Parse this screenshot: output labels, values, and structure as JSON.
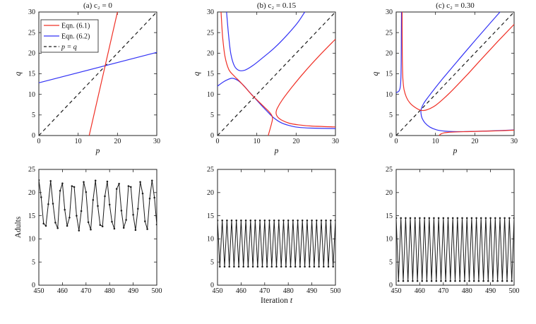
{
  "colors": {
    "red": "#f03026",
    "blue": "#3333f5",
    "black": "#1a1a1a",
    "axis": "#222222"
  },
  "chart_data": [
    {
      "id": "phase-plane-a",
      "type": "line",
      "title": "(a) c₂ = 0",
      "xlabel": "p",
      "ylabel": "q",
      "xlim": [
        0,
        30
      ],
      "ylim": [
        0,
        30
      ],
      "xticks": [
        0,
        10,
        20,
        30
      ],
      "yticks": [
        0,
        5,
        10,
        15,
        20,
        25,
        30
      ],
      "grid": false,
      "legend": {
        "position": "top-left",
        "entries": [
          {
            "label": "Eqn. (6.1)",
            "color": "red",
            "dash": false,
            "italic": false
          },
          {
            "label": "Eqn. (6.2)",
            "color": "blue",
            "dash": false,
            "italic": false
          },
          {
            "label": "p = q",
            "color": "black",
            "dash": true,
            "italic": true
          }
        ]
      },
      "series": [
        {
          "name": "p = q",
          "color": "black",
          "dash": true,
          "smooth": false,
          "points": [
            [
              0,
              0
            ],
            [
              30,
              30
            ]
          ]
        },
        {
          "name": "Eqn. (6.2)",
          "color": "blue",
          "dash": false,
          "smooth": false,
          "points": [
            [
              0,
              12.8
            ],
            [
              30,
              20.2
            ]
          ]
        },
        {
          "name": "Eqn. (6.1)",
          "color": "red",
          "dash": false,
          "smooth": false,
          "points": [
            [
              12.8,
              0
            ],
            [
              20,
              30
            ]
          ]
        }
      ]
    },
    {
      "id": "phase-plane-b",
      "type": "line",
      "title": "(b) c₂ = 0.15",
      "xlabel": "p",
      "ylabel": "q",
      "xlim": [
        0,
        30
      ],
      "ylim": [
        0,
        30
      ],
      "xticks": [
        0,
        10,
        20,
        30
      ],
      "yticks": [
        0,
        5,
        10,
        15,
        20,
        25,
        30
      ],
      "grid": false,
      "series": [
        {
          "name": "p = q",
          "color": "black",
          "dash": true,
          "smooth": false,
          "points": [
            [
              0,
              0
            ],
            [
              30,
              30
            ]
          ]
        },
        {
          "name": "Eqn. (6.2) upper branch",
          "color": "blue",
          "smooth": true,
          "points": [
            [
              2.3,
              30
            ],
            [
              2.8,
              24.5
            ],
            [
              3.4,
              19.8
            ],
            [
              4.3,
              16.9
            ],
            [
              5.5,
              15.8
            ],
            [
              7.0,
              15.9
            ],
            [
              9.0,
              17.0
            ],
            [
              11.5,
              18.9
            ],
            [
              14.5,
              21.3
            ],
            [
              17.5,
              24.2
            ],
            [
              20.3,
              27.3
            ],
            [
              22.2,
              30
            ]
          ]
        },
        {
          "name": "Eqn. (6.2) lower branch",
          "color": "blue",
          "smooth": true,
          "points": [
            [
              0,
              12.0
            ],
            [
              1.8,
              13.2
            ],
            [
              3.6,
              13.9
            ],
            [
              5.0,
              13.5
            ],
            [
              6.4,
              12.4
            ],
            [
              8.0,
              10.7
            ],
            [
              9.6,
              9.0
            ],
            [
              11.2,
              7.3
            ],
            [
              12.8,
              5.7
            ],
            [
              14.3,
              4.3
            ],
            [
              16.0,
              3.2
            ],
            [
              18.0,
              2.5
            ],
            [
              20.5,
              2.0
            ],
            [
              24,
              1.8
            ],
            [
              30,
              1.7
            ]
          ]
        },
        {
          "name": "Eqn. (6.1) left branch",
          "color": "red",
          "smooth": true,
          "points": [
            [
              0.9,
              30
            ],
            [
              1.3,
              24
            ],
            [
              1.9,
              19.2
            ],
            [
              2.9,
              16.0
            ],
            [
              4.3,
              14.4
            ],
            [
              5.9,
              12.9
            ],
            [
              7.4,
              11.3
            ],
            [
              8.7,
              9.9
            ],
            [
              10.2,
              8.5
            ],
            [
              11.7,
              7.1
            ],
            [
              13.0,
              5.9
            ],
            [
              13.8,
              4.9
            ],
            [
              14.0,
              4.1
            ],
            [
              13.8,
              3.1
            ],
            [
              13.4,
              1.7
            ],
            [
              12.9,
              0
            ]
          ]
        },
        {
          "name": "Eqn. (6.1) right branch",
          "color": "red",
          "smooth": true,
          "points": [
            [
              30,
              23.4
            ],
            [
              26,
              19.5
            ],
            [
              22,
              15.3
            ],
            [
              18.8,
              11.6
            ],
            [
              16.5,
              8.7
            ],
            [
              15.2,
              6.6
            ],
            [
              14.9,
              5.5
            ],
            [
              15.3,
              4.5
            ],
            [
              16.4,
              3.7
            ],
            [
              18.2,
              3.0
            ],
            [
              20.5,
              2.6
            ],
            [
              24,
              2.3
            ],
            [
              30,
              2.1
            ]
          ]
        }
      ]
    },
    {
      "id": "phase-plane-c",
      "type": "line",
      "title": "(c) c₂ = 0.30",
      "xlabel": "p",
      "ylabel": "q",
      "xlim": [
        0,
        30
      ],
      "ylim": [
        0,
        30
      ],
      "xticks": [
        0,
        10,
        20,
        30
      ],
      "yticks": [
        0,
        5,
        10,
        15,
        20,
        25,
        30
      ],
      "grid": false,
      "series": [
        {
          "name": "p = q",
          "color": "black",
          "dash": true,
          "smooth": false,
          "points": [
            [
              0,
              0
            ],
            [
              30,
              30
            ]
          ]
        },
        {
          "name": "Eqn. (6.2) left spike",
          "color": "blue",
          "smooth": true,
          "points": [
            [
              0,
              10.4
            ],
            [
              0.7,
              10.8
            ],
            [
              1.05,
              11.8
            ],
            [
              1.2,
              14
            ],
            [
              1.28,
              18
            ],
            [
              1.32,
              24
            ],
            [
              1.35,
              30
            ]
          ]
        },
        {
          "name": "Eqn. (6.2) main branch",
          "color": "blue",
          "smooth": true,
          "points": [
            [
              26.4,
              30
            ],
            [
              23,
              26.3
            ],
            [
              19,
              21.9
            ],
            [
              15,
              17.4
            ],
            [
              12,
              14
            ],
            [
              9.8,
              11.4
            ],
            [
              8.2,
              9.4
            ],
            [
              7.0,
              7.8
            ],
            [
              6.4,
              6.5
            ],
            [
              6.3,
              5.4
            ],
            [
              6.6,
              4.2
            ],
            [
              7.3,
              3.1
            ],
            [
              8.5,
              2.1
            ],
            [
              10.2,
              1.4
            ],
            [
              12.5,
              1.05
            ],
            [
              15.5,
              0.95
            ],
            [
              19,
              1.0
            ],
            [
              23,
              1.1
            ],
            [
              30,
              1.35
            ]
          ]
        },
        {
          "name": "Eqn. (6.1) main branch",
          "color": "red",
          "smooth": true,
          "points": [
            [
              1.5,
              30
            ],
            [
              1.53,
              24
            ],
            [
              1.58,
              18
            ],
            [
              1.7,
              13.8
            ],
            [
              2.0,
              11.2
            ],
            [
              2.6,
              9.3
            ],
            [
              3.5,
              7.9
            ],
            [
              4.7,
              6.9
            ],
            [
              6.0,
              6.2
            ],
            [
              7.2,
              6.1
            ],
            [
              8.5,
              6.5
            ],
            [
              10,
              7.3
            ],
            [
              12,
              8.9
            ],
            [
              14.5,
              11.2
            ],
            [
              18,
              14.7
            ],
            [
              22,
              18.9
            ],
            [
              26,
              23
            ],
            [
              30,
              27
            ]
          ]
        },
        {
          "name": "Eqn. (6.1) bottom branch",
          "color": "red",
          "smooth": true,
          "points": [
            [
              10.9,
              0
            ],
            [
              11.4,
              0.4
            ],
            [
              12.2,
              0.65
            ],
            [
              13.5,
              0.8
            ],
            [
              15.5,
              0.9
            ],
            [
              18,
              0.95
            ],
            [
              22,
              1.05
            ],
            [
              26,
              1.15
            ],
            [
              30,
              1.3
            ]
          ]
        }
      ]
    },
    {
      "id": "adults-timeseries-a",
      "type": "line",
      "title": "",
      "xlabel": "",
      "ylabel": "Adults",
      "xlim": [
        450,
        500
      ],
      "ylim": [
        0,
        25
      ],
      "xticks": [
        450,
        460,
        470,
        480,
        490,
        500
      ],
      "yticks": [
        0,
        5,
        10,
        15,
        20,
        25
      ],
      "grid": false,
      "series": [
        {
          "name": "Adults",
          "color": "black",
          "markers": true,
          "width": 1.0,
          "t_start": 450,
          "values": [
            22.7,
            19.0,
            13.3,
            12.8,
            17.5,
            22.5,
            17.6,
            13.5,
            12.3,
            20.4,
            22.0,
            16.3,
            12.8,
            14.6,
            21.4,
            21.2,
            15.0,
            11.8,
            16.0,
            22.3,
            20.1,
            13.6,
            12.0,
            18.4,
            22.6,
            17.1,
            13.0,
            12.7,
            19.2,
            22.4,
            17.4,
            13.7,
            12.2,
            20.8,
            21.9,
            16.1,
            12.4,
            14.1,
            21.4,
            21.2,
            15.2,
            11.9,
            16.5,
            22.3,
            19.8,
            13.8,
            12.1,
            18.7,
            22.6,
            18.9,
            13.1
          ]
        }
      ]
    },
    {
      "id": "adults-timeseries-b",
      "type": "line",
      "title": "",
      "xlabel": "Iteration t",
      "ylabel": "",
      "xlim": [
        450,
        500
      ],
      "ylim": [
        0,
        25
      ],
      "xticks": [
        450,
        460,
        470,
        480,
        490,
        500
      ],
      "yticks": [
        0,
        5,
        10,
        15,
        20,
        25
      ],
      "grid": false,
      "series": [
        {
          "name": "Adults",
          "color": "black",
          "markers": true,
          "width": 1.0,
          "t_start": 450,
          "values": [
            14,
            4,
            14,
            4,
            14,
            4,
            14,
            4,
            14,
            4,
            14,
            4,
            14,
            4,
            14,
            4,
            14,
            4,
            14,
            4,
            14,
            4,
            14,
            4,
            14,
            4,
            14,
            4,
            14,
            4,
            14,
            4,
            14,
            4,
            14,
            4,
            14,
            4,
            14,
            4,
            14,
            4,
            14,
            4,
            14,
            4,
            14,
            4,
            14,
            4,
            14
          ]
        }
      ]
    },
    {
      "id": "adults-timeseries-c",
      "type": "line",
      "title": "",
      "xlabel": "",
      "ylabel": "",
      "xlim": [
        450,
        500
      ],
      "ylim": [
        0,
        25
      ],
      "xticks": [
        450,
        460,
        470,
        480,
        490,
        500
      ],
      "yticks": [
        0,
        5,
        10,
        15,
        20,
        25
      ],
      "grid": false,
      "series": [
        {
          "name": "Adults",
          "color": "black",
          "markers": true,
          "width": 1.0,
          "t_start": 450,
          "values": [
            14.5,
            0.9,
            14.5,
            0.9,
            14.5,
            0.9,
            14.5,
            0.9,
            14.5,
            0.9,
            14.5,
            0.9,
            14.5,
            0.9,
            14.5,
            0.9,
            14.5,
            0.9,
            14.5,
            0.9,
            14.5,
            0.9,
            14.5,
            0.9,
            14.5,
            0.9,
            14.5,
            0.9,
            14.5,
            0.9,
            14.5,
            0.9,
            14.5,
            0.9,
            14.5,
            0.9,
            14.5,
            0.9,
            14.5,
            0.9,
            14.5,
            0.9,
            14.5,
            0.9,
            14.5,
            0.9,
            14.5,
            0.9,
            14.5,
            0.9,
            14.5
          ]
        }
      ]
    }
  ]
}
